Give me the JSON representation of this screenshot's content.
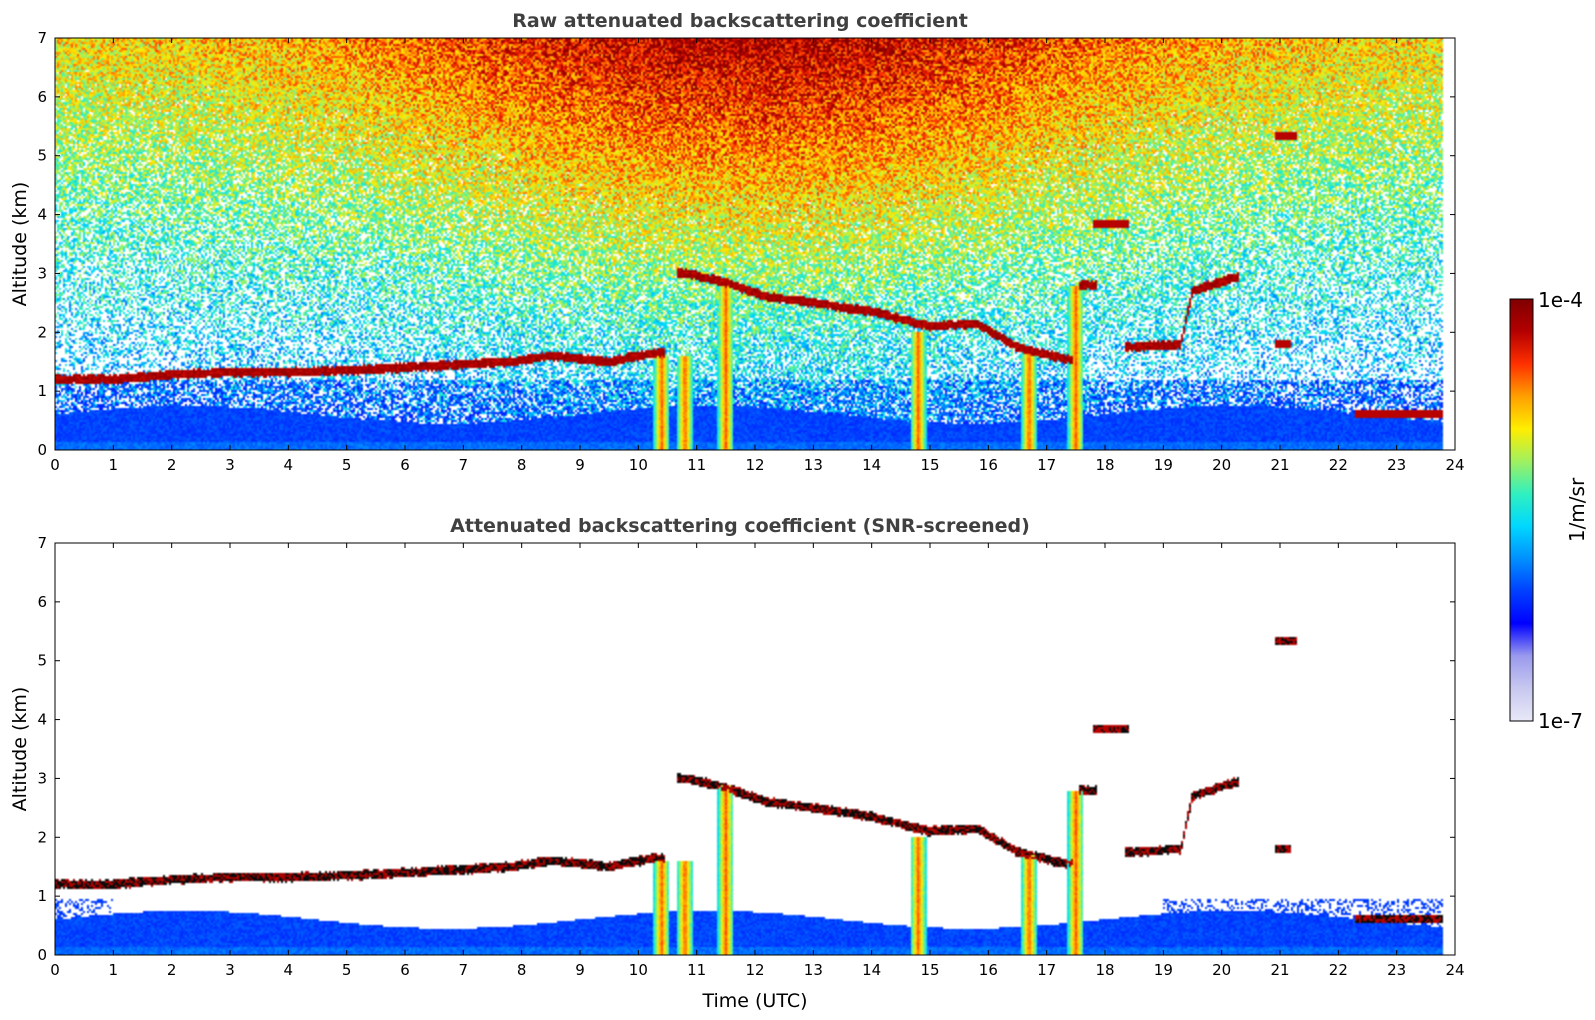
{
  "colors": {
    "colormap": [
      "#e8e8f8",
      "#c8c8f0",
      "#9a9aee",
      "#0000ff",
      "#0040ff",
      "#0090ff",
      "#00d8ff",
      "#30f0c0",
      "#a0f060",
      "#ffee00",
      "#ffa000",
      "#ff3000",
      "#b40000",
      "#800000"
    ],
    "axis": "#000000",
    "title": "#404040"
  },
  "colorbar": {
    "label": "1/m/sr",
    "max_label": "1e-4",
    "min_label": "1e-7",
    "scale": "log"
  },
  "chart_data": [
    {
      "type": "heatmap",
      "title": "Raw attenuated backscattering coefficient",
      "xlabel": "",
      "ylabel": "Altitude (km)",
      "xlim": [
        0,
        24
      ],
      "ylim": [
        0,
        7
      ],
      "xticks": [
        "0",
        "1",
        "2",
        "3",
        "4",
        "5",
        "6",
        "7",
        "8",
        "9",
        "10",
        "11",
        "12",
        "13",
        "14",
        "15",
        "16",
        "17",
        "18",
        "19",
        "20",
        "21",
        "22",
        "23",
        "24"
      ],
      "yticks": [
        "0",
        "1",
        "2",
        "3",
        "4",
        "5",
        "6",
        "7"
      ],
      "grid": false,
      "data_end_time": 23.8,
      "cloud_base_layer": [
        {
          "t": 0,
          "alt": 1.2
        },
        {
          "t": 1,
          "alt": 1.2
        },
        {
          "t": 2,
          "alt": 1.28
        },
        {
          "t": 3,
          "alt": 1.32
        },
        {
          "t": 4,
          "alt": 1.32
        },
        {
          "t": 5,
          "alt": 1.35
        },
        {
          "t": 6,
          "alt": 1.4
        },
        {
          "t": 7,
          "alt": 1.45
        },
        {
          "t": 7.8,
          "alt": 1.5
        },
        {
          "t": 8.5,
          "alt": 1.6
        },
        {
          "t": 9.5,
          "alt": 1.5
        },
        {
          "t": 10.3,
          "alt": 1.65
        },
        {
          "t": 10.8,
          "alt": 3.0
        },
        {
          "t": 11.5,
          "alt": 2.85
        },
        {
          "t": 12.2,
          "alt": 2.6
        },
        {
          "t": 13,
          "alt": 2.5
        },
        {
          "t": 14,
          "alt": 2.35
        },
        {
          "t": 15,
          "alt": 2.1
        },
        {
          "t": 15.8,
          "alt": 2.15
        },
        {
          "t": 16.5,
          "alt": 1.75
        },
        {
          "t": 17.3,
          "alt": 1.55
        },
        {
          "t": 17.7,
          "alt": 2.8
        },
        {
          "t": 18.5,
          "alt": 1.75
        },
        {
          "t": 19.3,
          "alt": 1.8
        },
        {
          "t": 19.5,
          "alt": 2.7
        },
        {
          "t": 20.3,
          "alt": 2.95
        }
      ],
      "isolated_clouds": [
        {
          "t_start": 17.8,
          "t_end": 18.4,
          "alt": 3.85
        },
        {
          "t_start": 20.9,
          "t_end": 21.3,
          "alt": 5.33
        },
        {
          "t_start": 20.9,
          "t_end": 21.2,
          "alt": 1.8
        },
        {
          "t_start": 22.3,
          "t_end": 23.8,
          "alt": 0.6
        }
      ],
      "precipitation_shafts": [
        10.4,
        10.8,
        11.5,
        14.8,
        16.7,
        17.5
      ]
    },
    {
      "type": "heatmap",
      "title": "Attenuated backscattering coefficient (SNR-screened)",
      "xlabel": "Time (UTC)",
      "ylabel": "Altitude (km)",
      "xlim": [
        0,
        24
      ],
      "ylim": [
        0,
        7
      ],
      "xticks": [
        "0",
        "1",
        "2",
        "3",
        "4",
        "5",
        "6",
        "7",
        "8",
        "9",
        "10",
        "11",
        "12",
        "13",
        "14",
        "15",
        "16",
        "17",
        "18",
        "19",
        "20",
        "21",
        "22",
        "23",
        "24"
      ],
      "yticks": [
        "0",
        "1",
        "2",
        "3",
        "4",
        "5",
        "6",
        "7"
      ],
      "grid": false,
      "data_end_time": 23.8
    }
  ]
}
